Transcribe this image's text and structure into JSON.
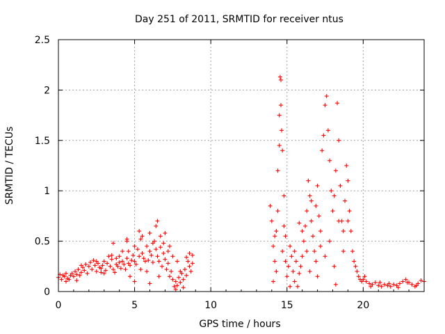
{
  "chart_data": {
    "type": "scatter",
    "title": "Day 251 of 2011, SRMTID for receiver ntus",
    "xlabel": "GPS time / hours",
    "ylabel": "SRMTID / TECUs",
    "xlim": [
      0,
      24
    ],
    "ylim": [
      0,
      2.5
    ],
    "x_ticks": [
      0,
      5,
      10,
      15,
      20
    ],
    "y_ticks": [
      0,
      0.5,
      1,
      1.5,
      2,
      2.5
    ],
    "x_tick_labels": [
      "0",
      "5",
      "10",
      "15",
      "20"
    ],
    "y_tick_labels": [
      "0",
      "0.5",
      "1",
      "1.5",
      "2",
      "2.5"
    ],
    "grid": true,
    "marker": "+",
    "color": "#ff0000",
    "series": [
      {
        "name": "SRMTID",
        "points": [
          [
            0.0,
            0.14
          ],
          [
            0.1,
            0.17
          ],
          [
            0.2,
            0.12
          ],
          [
            0.3,
            0.16
          ],
          [
            0.4,
            0.15
          ],
          [
            0.5,
            0.18
          ],
          [
            0.6,
            0.13
          ],
          [
            0.7,
            0.12
          ],
          [
            0.8,
            0.16
          ],
          [
            0.9,
            0.18
          ],
          [
            1.0,
            0.15
          ],
          [
            1.1,
            0.2
          ],
          [
            1.2,
            0.17
          ],
          [
            1.3,
            0.22
          ],
          [
            1.4,
            0.16
          ],
          [
            1.5,
            0.19
          ],
          [
            1.6,
            0.24
          ],
          [
            1.7,
            0.21
          ],
          [
            1.8,
            0.27
          ],
          [
            1.9,
            0.18
          ],
          [
            2.0,
            0.25
          ],
          [
            2.1,
            0.29
          ],
          [
            2.2,
            0.22
          ],
          [
            2.3,
            0.31
          ],
          [
            2.4,
            0.26
          ],
          [
            2.5,
            0.2
          ],
          [
            2.6,
            0.28
          ],
          [
            2.7,
            0.24
          ],
          [
            2.8,
            0.23
          ],
          [
            2.9,
            0.26
          ],
          [
            3.0,
            0.3
          ],
          [
            3.1,
            0.21
          ],
          [
            3.2,
            0.28
          ],
          [
            3.3,
            0.35
          ],
          [
            3.4,
            0.25
          ],
          [
            3.5,
            0.32
          ],
          [
            3.6,
            0.22
          ],
          [
            3.7,
            0.19
          ],
          [
            3.8,
            0.27
          ],
          [
            3.9,
            0.25
          ],
          [
            4.0,
            0.29
          ],
          [
            4.1,
            0.23
          ],
          [
            4.2,
            0.3
          ],
          [
            4.3,
            0.27
          ],
          [
            4.4,
            0.22
          ],
          [
            4.5,
            0.33
          ],
          [
            4.6,
            0.28
          ],
          [
            4.7,
            0.26
          ],
          [
            4.8,
            0.31
          ],
          [
            4.9,
            0.36
          ],
          [
            5.0,
            0.3
          ],
          [
            5.1,
            0.27
          ],
          [
            5.2,
            0.42
          ],
          [
            5.3,
            0.35
          ],
          [
            5.4,
            0.22
          ],
          [
            5.5,
            0.38
          ],
          [
            5.6,
            0.33
          ],
          [
            5.7,
            0.3
          ],
          [
            5.8,
            0.45
          ],
          [
            5.9,
            0.31
          ],
          [
            6.0,
            0.4
          ],
          [
            6.1,
            0.36
          ],
          [
            6.2,
            0.29
          ],
          [
            6.3,
            0.5
          ],
          [
            6.4,
            0.42
          ],
          [
            6.5,
            0.35
          ],
          [
            6.6,
            0.3
          ],
          [
            6.7,
            0.44
          ],
          [
            6.8,
            0.25
          ],
          [
            6.9,
            0.38
          ],
          [
            7.0,
            0.32
          ],
          [
            7.1,
            0.22
          ],
          [
            7.2,
            0.28
          ],
          [
            7.3,
            0.15
          ],
          [
            7.4,
            0.2
          ],
          [
            7.5,
            0.12
          ],
          [
            7.6,
            0.05
          ],
          [
            7.7,
            0.1
          ],
          [
            7.8,
            0.06
          ],
          [
            7.9,
            0.14
          ],
          [
            8.0,
            0.09
          ],
          [
            8.1,
            0.18
          ],
          [
            8.2,
            0.12
          ],
          [
            8.3,
            0.22
          ],
          [
            8.4,
            0.16
          ],
          [
            8.5,
            0.3
          ],
          [
            8.6,
            0.25
          ],
          [
            8.7,
            0.2
          ],
          [
            8.8,
            0.28
          ],
          [
            0.5,
            0.1
          ],
          [
            1.5,
            0.26
          ],
          [
            2.5,
            0.3
          ],
          [
            3.0,
            0.18
          ],
          [
            3.5,
            0.36
          ],
          [
            4.0,
            0.35
          ],
          [
            4.5,
            0.5
          ],
          [
            4.6,
            0.4
          ],
          [
            5.0,
            0.45
          ],
          [
            5.3,
            0.6
          ],
          [
            5.5,
            0.55
          ],
          [
            5.8,
            0.2
          ],
          [
            6.0,
            0.58
          ],
          [
            6.2,
            0.48
          ],
          [
            6.4,
            0.65
          ],
          [
            6.5,
            0.7
          ],
          [
            6.7,
            0.55
          ],
          [
            6.9,
            0.48
          ],
          [
            7.0,
            0.58
          ],
          [
            7.3,
            0.45
          ],
          [
            7.5,
            0.35
          ],
          [
            7.8,
            0.3
          ],
          [
            8.0,
            0.2
          ],
          [
            8.2,
            0.04
          ],
          [
            8.4,
            0.34
          ],
          [
            8.6,
            0.38
          ],
          [
            4.7,
            0.15
          ],
          [
            4.5,
            0.52
          ],
          [
            3.6,
            0.48
          ],
          [
            5.0,
            0.1
          ],
          [
            7.2,
            0.4
          ],
          [
            6.6,
            0.15
          ],
          [
            5.4,
            0.52
          ],
          [
            6.0,
            0.08
          ],
          [
            7.7,
            0.02
          ],
          [
            8.8,
            0.36
          ],
          [
            4.2,
            0.4
          ],
          [
            3.8,
            0.33
          ],
          [
            2.8,
            0.19
          ],
          [
            1.2,
            0.11
          ],
          [
            13.9,
            0.85
          ],
          [
            14.0,
            0.7
          ],
          [
            14.1,
            0.45
          ],
          [
            14.2,
            0.3
          ],
          [
            14.3,
            0.6
          ],
          [
            14.4,
            0.8
          ],
          [
            14.5,
            1.45
          ],
          [
            14.55,
            2.13
          ],
          [
            14.6,
            2.1
          ],
          [
            14.6,
            1.85
          ],
          [
            14.65,
            1.6
          ],
          [
            14.7,
            1.4
          ],
          [
            14.5,
            1.75
          ],
          [
            14.8,
            0.95
          ],
          [
            14.4,
            1.2
          ],
          [
            14.3,
            0.2
          ],
          [
            14.1,
            0.1
          ],
          [
            14.2,
            0.55
          ],
          [
            14.7,
            0.4
          ],
          [
            14.9,
            0.3
          ],
          [
            15.0,
            0.15
          ],
          [
            15.1,
            0.25
          ],
          [
            15.2,
            0.45
          ],
          [
            15.3,
            0.35
          ],
          [
            15.4,
            0.2
          ],
          [
            15.5,
            0.1
          ],
          [
            15.6,
            0.3
          ],
          [
            15.7,
            0.05
          ],
          [
            15.8,
            0.18
          ],
          [
            15.9,
            0.25
          ],
          [
            16.0,
            0.35
          ],
          [
            16.1,
            0.5
          ],
          [
            16.2,
            0.65
          ],
          [
            16.3,
            0.8
          ],
          [
            16.4,
            1.1
          ],
          [
            16.5,
            0.95
          ],
          [
            16.6,
            0.7
          ],
          [
            16.7,
            0.55
          ],
          [
            16.8,
            0.4
          ],
          [
            16.9,
            0.85
          ],
          [
            17.0,
            1.05
          ],
          [
            17.1,
            0.75
          ],
          [
            17.2,
            0.45
          ],
          [
            17.3,
            1.4
          ],
          [
            17.4,
            1.55
          ],
          [
            17.5,
            1.85
          ],
          [
            17.6,
            1.94
          ],
          [
            17.7,
            1.6
          ],
          [
            17.8,
            1.3
          ],
          [
            17.9,
            1.0
          ],
          [
            18.0,
            0.8
          ],
          [
            18.1,
            0.95
          ],
          [
            18.2,
            1.2
          ],
          [
            18.3,
            1.87
          ],
          [
            18.4,
            1.5
          ],
          [
            18.5,
            1.05
          ],
          [
            18.6,
            0.7
          ],
          [
            18.7,
            0.6
          ],
          [
            18.8,
            0.9
          ],
          [
            18.9,
            1.25
          ],
          [
            19.0,
            1.1
          ],
          [
            19.1,
            0.8
          ],
          [
            19.2,
            0.6
          ],
          [
            19.3,
            0.4
          ],
          [
            19.4,
            0.3
          ],
          [
            19.5,
            0.25
          ],
          [
            19.6,
            0.2
          ],
          [
            19.7,
            0.15
          ],
          [
            19.8,
            0.12
          ],
          [
            19.9,
            0.1
          ],
          [
            16.0,
            0.6
          ],
          [
            16.3,
            0.4
          ],
          [
            16.6,
            0.9
          ],
          [
            16.9,
            0.3
          ],
          [
            17.2,
            0.6
          ],
          [
            17.5,
            0.35
          ],
          [
            17.8,
            0.5
          ],
          [
            18.1,
            0.25
          ],
          [
            18.4,
            0.7
          ],
          [
            18.7,
            0.4
          ],
          [
            19.0,
            0.7
          ],
          [
            14.8,
            0.65
          ],
          [
            15.5,
            0.4
          ],
          [
            15.2,
            0.05
          ],
          [
            14.9,
            0.55
          ],
          [
            16.5,
            0.2
          ],
          [
            18.2,
            0.07
          ],
          [
            17.0,
            0.15
          ],
          [
            15.8,
            0.68
          ],
          [
            20.0,
            0.12
          ],
          [
            20.2,
            0.1
          ],
          [
            20.4,
            0.08
          ],
          [
            20.6,
            0.07
          ],
          [
            20.8,
            0.09
          ],
          [
            21.0,
            0.06
          ],
          [
            21.2,
            0.05
          ],
          [
            21.4,
            0.07
          ],
          [
            21.6,
            0.06
          ],
          [
            21.8,
            0.05
          ],
          [
            22.0,
            0.07
          ],
          [
            22.2,
            0.06
          ],
          [
            22.4,
            0.08
          ],
          [
            22.6,
            0.1
          ],
          [
            22.8,
            0.12
          ],
          [
            23.0,
            0.09
          ],
          [
            23.2,
            0.07
          ],
          [
            23.4,
            0.05
          ],
          [
            23.6,
            0.08
          ],
          [
            23.8,
            0.11
          ],
          [
            24.0,
            0.1
          ],
          [
            20.1,
            0.15
          ],
          [
            20.5,
            0.05
          ],
          [
            21.1,
            0.09
          ],
          [
            21.7,
            0.08
          ],
          [
            22.3,
            0.04
          ],
          [
            22.9,
            0.09
          ],
          [
            23.5,
            0.06
          ]
        ]
      }
    ]
  }
}
